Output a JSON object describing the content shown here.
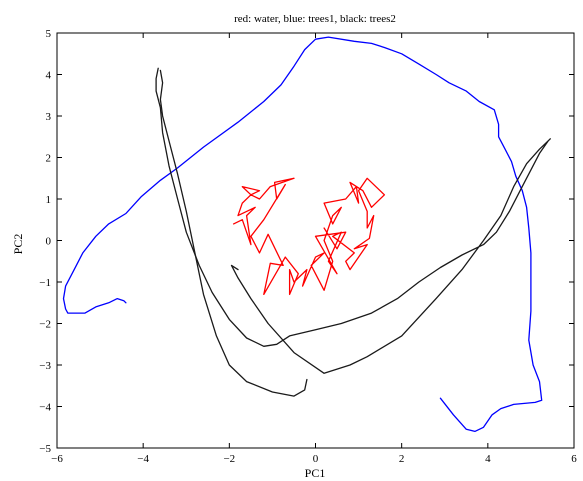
{
  "chart_data": {
    "type": "line",
    "title": "red: water, blue: trees1, black: trees2",
    "xlabel": "PC1",
    "ylabel": "PC2",
    "xlim": [
      -6,
      6
    ],
    "ylim": [
      -5,
      5
    ],
    "xticks": [
      -6,
      -4,
      -2,
      0,
      2,
      4,
      6
    ],
    "yticks": [
      -5,
      -4,
      -3,
      -2,
      -1,
      0,
      1,
      2,
      3,
      4,
      5
    ],
    "grid": false,
    "series": [
      {
        "name": "water",
        "color": "#ff0000",
        "points": [
          [
            -1.9,
            0.4
          ],
          [
            -1.7,
            0.5
          ],
          [
            -1.5,
            -0.1
          ],
          [
            -1.6,
            0.6
          ],
          [
            -1.4,
            0.8
          ],
          [
            -1.8,
            0.6
          ],
          [
            -1.7,
            0.9
          ],
          [
            -1.5,
            1.1
          ],
          [
            -1.3,
            1.2
          ],
          [
            -1.7,
            1.3
          ],
          [
            -1.5,
            1.1
          ],
          [
            -1.3,
            1.0
          ],
          [
            -1.05,
            1.3
          ],
          [
            -0.5,
            1.5
          ],
          [
            -0.95,
            1.4
          ],
          [
            -0.9,
            1.0
          ],
          [
            -0.7,
            1.35
          ],
          [
            -1.2,
            0.5
          ],
          [
            -1.5,
            0.1
          ],
          [
            -1.3,
            -0.3
          ],
          [
            -1.1,
            0.15
          ],
          [
            -0.75,
            -0.6
          ],
          [
            -1.05,
            -0.55
          ],
          [
            -1.2,
            -1.3
          ],
          [
            -0.7,
            -0.4
          ],
          [
            -0.4,
            -0.8
          ],
          [
            -0.6,
            -1.3
          ],
          [
            -0.6,
            -0.7
          ],
          [
            -0.5,
            -1.0
          ],
          [
            -0.2,
            -0.7
          ],
          [
            -0.3,
            -1.1
          ],
          [
            0.0,
            -0.4
          ],
          [
            0.2,
            -0.3
          ],
          [
            -0.1,
            -0.6
          ],
          [
            0.2,
            -1.2
          ],
          [
            0.4,
            -0.5
          ],
          [
            0.2,
            0.0
          ],
          [
            0.4,
            0.6
          ],
          [
            0.6,
            0.8
          ],
          [
            0.4,
            0.4
          ],
          [
            0.2,
            0.9
          ],
          [
            0.7,
            1.0
          ],
          [
            0.95,
            1.3
          ],
          [
            1.0,
            0.9
          ],
          [
            0.8,
            1.4
          ],
          [
            1.1,
            1.2
          ],
          [
            1.3,
            0.8
          ],
          [
            1.6,
            1.1
          ],
          [
            1.2,
            1.5
          ],
          [
            1.0,
            1.2
          ],
          [
            1.2,
            0.7
          ],
          [
            1.2,
            0.3
          ],
          [
            1.35,
            0.6
          ],
          [
            1.25,
            0.05
          ],
          [
            0.9,
            -0.2
          ],
          [
            1.2,
            -0.1
          ],
          [
            0.8,
            -0.7
          ],
          [
            0.7,
            -0.5
          ],
          [
            0.9,
            -0.3
          ],
          [
            0.4,
            0.1
          ],
          [
            0.6,
            0.2
          ],
          [
            0.3,
            -0.5
          ],
          [
            0.5,
            -0.8
          ],
          [
            0.0,
            0.1
          ],
          [
            0.7,
            0.2
          ],
          [
            0.5,
            -0.2
          ],
          [
            0.2,
            0.3
          ]
        ]
      },
      {
        "name": "trees1",
        "color": "#0000ff",
        "points": [
          [
            -4.4,
            -1.5
          ],
          [
            -4.45,
            -1.45
          ],
          [
            -4.6,
            -1.4
          ],
          [
            -4.8,
            -1.5
          ],
          [
            -5.1,
            -1.6
          ],
          [
            -5.35,
            -1.75
          ],
          [
            -5.6,
            -1.75
          ],
          [
            -5.75,
            -1.75
          ],
          [
            -5.8,
            -1.65
          ],
          [
            -5.85,
            -1.4
          ],
          [
            -5.8,
            -1.1
          ],
          [
            -5.6,
            -0.7
          ],
          [
            -5.4,
            -0.3
          ],
          [
            -5.1,
            0.1
          ],
          [
            -4.8,
            0.4
          ],
          [
            -4.4,
            0.65
          ],
          [
            -4.05,
            1.05
          ],
          [
            -3.6,
            1.45
          ],
          [
            -3.2,
            1.75
          ],
          [
            -2.6,
            2.25
          ],
          [
            -1.8,
            2.85
          ],
          [
            -1.2,
            3.35
          ],
          [
            -0.8,
            3.75
          ],
          [
            -0.5,
            4.2
          ],
          [
            -0.25,
            4.6
          ],
          [
            0.0,
            4.85
          ],
          [
            0.3,
            4.9
          ],
          [
            0.9,
            4.8
          ],
          [
            1.3,
            4.75
          ],
          [
            1.6,
            4.65
          ],
          [
            2.0,
            4.5
          ],
          [
            2.4,
            4.25
          ],
          [
            2.8,
            4.0
          ],
          [
            3.1,
            3.8
          ],
          [
            3.5,
            3.6
          ],
          [
            3.8,
            3.35
          ],
          [
            4.15,
            3.15
          ],
          [
            4.25,
            2.8
          ],
          [
            4.25,
            2.5
          ],
          [
            4.4,
            2.2
          ],
          [
            4.55,
            1.9
          ],
          [
            4.65,
            1.55
          ],
          [
            4.8,
            1.2
          ],
          [
            4.9,
            0.8
          ],
          [
            4.95,
            0.3
          ],
          [
            5.0,
            -0.3
          ],
          [
            5.0,
            -1.0
          ],
          [
            5.0,
            -1.7
          ],
          [
            4.95,
            -2.4
          ],
          [
            5.05,
            -3.0
          ],
          [
            5.2,
            -3.4
          ],
          [
            5.25,
            -3.85
          ],
          [
            5.1,
            -3.9
          ],
          [
            4.6,
            -3.95
          ],
          [
            4.3,
            -4.05
          ],
          [
            4.1,
            -4.2
          ],
          [
            3.9,
            -4.5
          ],
          [
            3.7,
            -4.6
          ],
          [
            3.5,
            -4.55
          ],
          [
            3.2,
            -4.2
          ],
          [
            2.9,
            -3.8
          ]
        ]
      },
      {
        "name": "trees2",
        "color": "#1a1a1a",
        "points": [
          [
            -3.65,
            4.15
          ],
          [
            -3.7,
            3.9
          ],
          [
            -3.7,
            3.6
          ],
          [
            -3.6,
            3.2
          ],
          [
            -3.55,
            2.6
          ],
          [
            -3.4,
            1.8
          ],
          [
            -3.2,
            1.0
          ],
          [
            -3.0,
            0.2
          ],
          [
            -2.7,
            -0.6
          ],
          [
            -2.4,
            -1.25
          ],
          [
            -2.0,
            -1.9
          ],
          [
            -1.6,
            -2.35
          ],
          [
            -1.2,
            -2.55
          ],
          [
            -0.9,
            -2.5
          ],
          [
            -0.6,
            -2.3
          ],
          [
            0.0,
            -2.15
          ],
          [
            0.6,
            -2.0
          ],
          [
            1.3,
            -1.75
          ],
          [
            1.9,
            -1.4
          ],
          [
            2.4,
            -1.0
          ],
          [
            2.9,
            -0.65
          ],
          [
            3.4,
            -0.35
          ],
          [
            3.9,
            -0.1
          ],
          [
            4.2,
            0.2
          ],
          [
            4.5,
            0.7
          ],
          [
            4.75,
            1.2
          ],
          [
            5.0,
            1.7
          ],
          [
            5.2,
            2.1
          ],
          [
            5.4,
            2.4
          ],
          [
            5.3,
            2.3
          ],
          [
            5.45,
            2.45
          ],
          [
            5.2,
            2.2
          ],
          [
            4.9,
            1.85
          ],
          [
            4.6,
            1.3
          ],
          [
            4.3,
            0.6
          ],
          [
            3.9,
            0.0
          ],
          [
            3.4,
            -0.7
          ],
          [
            2.8,
            -1.4
          ],
          [
            2.0,
            -2.3
          ],
          [
            1.2,
            -2.8
          ],
          [
            0.8,
            -3.0
          ],
          [
            0.2,
            -3.2
          ],
          [
            -0.5,
            -2.7
          ],
          [
            -1.1,
            -2.0
          ],
          [
            -1.5,
            -1.4
          ],
          [
            -1.8,
            -0.9
          ],
          [
            -1.95,
            -0.6
          ],
          [
            -1.8,
            -0.7
          ]
        ],
        "points_b": [
          [
            -3.6,
            4.1
          ],
          [
            -3.55,
            3.8
          ],
          [
            -3.6,
            3.4
          ],
          [
            -3.55,
            3.0
          ],
          [
            -3.4,
            2.4
          ],
          [
            -3.2,
            1.6
          ],
          [
            -3.0,
            0.7
          ],
          [
            -2.8,
            -0.3
          ],
          [
            -2.6,
            -1.3
          ],
          [
            -2.3,
            -2.3
          ],
          [
            -2.0,
            -3.0
          ],
          [
            -1.6,
            -3.4
          ],
          [
            -1.0,
            -3.65
          ],
          [
            -0.5,
            -3.75
          ],
          [
            -0.25,
            -3.6
          ],
          [
            -0.2,
            -3.35
          ]
        ]
      }
    ]
  }
}
